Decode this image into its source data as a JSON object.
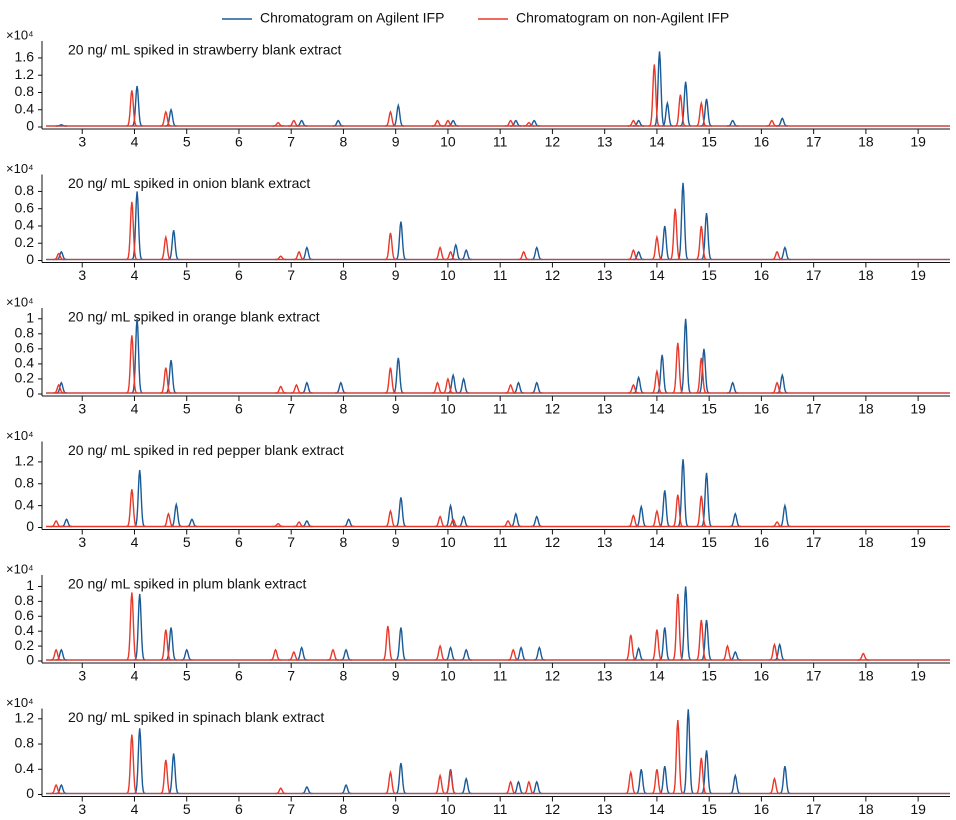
{
  "chart_data": [
    {
      "type": "chromatogram",
      "title": "20 ng/ mL spiked in strawberry blank extract",
      "multiplier": "×10⁴",
      "xlim": [
        2.23,
        19.61
      ],
      "xticks": [
        3,
        4,
        5,
        6,
        7,
        8,
        9,
        10,
        11,
        12,
        13,
        14,
        15,
        16,
        17,
        18,
        19
      ],
      "ylim": [
        0,
        1.9
      ],
      "yticks": [
        0,
        0.4,
        0.8,
        1.2,
        1.6
      ],
      "series": [
        {
          "name": "Chromatogram on Agilent IFP",
          "color": "#1a5a96",
          "x": [
            2.6,
            4.05,
            4.7,
            7.2,
            7.9,
            9.05,
            10.1,
            11.3,
            11.65,
            13.65,
            14.05,
            14.2,
            14.55,
            14.95,
            15.45,
            16.4
          ],
          "values": [
            0.05,
            0.95,
            0.4,
            0.15,
            0.15,
            0.5,
            0.15,
            0.15,
            0.15,
            0.15,
            1.75,
            0.55,
            1.05,
            0.65,
            0.15,
            0.2
          ]
        },
        {
          "name": "Chromatogram on non-Agilent  IFP",
          "color": "#e8382a",
          "x": [
            3.95,
            4.6,
            6.75,
            7.05,
            8.9,
            9.8,
            10.0,
            11.2,
            11.55,
            13.55,
            13.95,
            14.45,
            14.85,
            16.2
          ],
          "values": [
            0.85,
            0.35,
            0.1,
            0.15,
            0.35,
            0.15,
            0.15,
            0.15,
            0.1,
            0.15,
            1.45,
            0.75,
            0.55,
            0.15
          ]
        }
      ]
    },
    {
      "type": "chromatogram",
      "title": "20 ng/ mL spiked in onion blank extract",
      "multiplier": "×10⁴",
      "xlim": [
        2.23,
        19.61
      ],
      "xticks": [
        3,
        4,
        5,
        6,
        7,
        8,
        9,
        10,
        11,
        12,
        13,
        14,
        15,
        16,
        17,
        18,
        19
      ],
      "ylim": [
        0,
        0.95
      ],
      "yticks": [
        0,
        0.2,
        0.4,
        0.6,
        0.8
      ],
      "series": [
        {
          "color": "#1a5a96",
          "x": [
            2.6,
            4.05,
            4.75,
            7.3,
            9.1,
            10.15,
            10.35,
            11.7,
            13.65,
            14.15,
            14.5,
            14.95,
            16.45
          ],
          "values": [
            0.1,
            0.8,
            0.35,
            0.15,
            0.45,
            0.18,
            0.12,
            0.15,
            0.1,
            0.4,
            0.9,
            0.55,
            0.15
          ]
        },
        {
          "color": "#e8382a",
          "x": [
            2.55,
            3.95,
            4.6,
            6.8,
            7.15,
            8.9,
            9.85,
            10.05,
            11.45,
            13.55,
            14.0,
            14.35,
            14.85,
            16.3
          ],
          "values": [
            0.08,
            0.68,
            0.27,
            0.05,
            0.1,
            0.32,
            0.15,
            0.1,
            0.1,
            0.12,
            0.27,
            0.6,
            0.4,
            0.1
          ]
        }
      ]
    },
    {
      "type": "chromatogram",
      "title": "20 ng/ mL spiked in orange blank extract",
      "multiplier": "×10⁴",
      "xlim": [
        2.23,
        19.61
      ],
      "xticks": [
        3,
        4,
        5,
        6,
        7,
        8,
        9,
        10,
        11,
        12,
        13,
        14,
        15,
        16,
        17,
        18,
        19
      ],
      "ylim": [
        0,
        1.09
      ],
      "yticks": [
        0,
        0.2,
        0.4,
        0.6,
        0.8,
        1
      ],
      "series": [
        {
          "color": "#1a5a96",
          "x": [
            2.6,
            4.05,
            4.7,
            7.3,
            7.95,
            9.05,
            10.1,
            10.3,
            11.35,
            11.7,
            13.65,
            14.1,
            14.55,
            14.9,
            15.45,
            16.4
          ],
          "values": [
            0.15,
            1.0,
            0.45,
            0.15,
            0.15,
            0.48,
            0.25,
            0.2,
            0.15,
            0.15,
            0.22,
            0.52,
            1.0,
            0.6,
            0.15,
            0.25
          ]
        },
        {
          "color": "#e8382a",
          "x": [
            2.55,
            3.95,
            4.6,
            6.8,
            7.1,
            8.9,
            9.8,
            10.0,
            11.2,
            13.55,
            14.0,
            14.4,
            14.85,
            16.3
          ],
          "values": [
            0.12,
            0.78,
            0.35,
            0.1,
            0.12,
            0.35,
            0.15,
            0.2,
            0.12,
            0.12,
            0.3,
            0.68,
            0.48,
            0.15
          ]
        }
      ]
    },
    {
      "type": "chromatogram",
      "title": "20 ng/ mL spiked in red pepper blank extract",
      "multiplier": "×10⁴",
      "xlim": [
        2.23,
        19.61
      ],
      "xticks": [
        3,
        4,
        5,
        6,
        7,
        8,
        9,
        10,
        11,
        12,
        13,
        14,
        15,
        16,
        17,
        18,
        19
      ],
      "ylim": [
        0,
        1.5
      ],
      "yticks": [
        0,
        0.4,
        0.8,
        1.2
      ],
      "series": [
        {
          "color": "#1a5a96",
          "x": [
            2.7,
            4.1,
            4.8,
            5.1,
            7.3,
            8.1,
            9.1,
            10.05,
            10.3,
            11.3,
            11.7,
            13.7,
            14.15,
            14.5,
            14.95,
            15.5,
            16.45
          ],
          "values": [
            0.15,
            1.05,
            0.42,
            0.15,
            0.12,
            0.15,
            0.55,
            0.4,
            0.2,
            0.25,
            0.2,
            0.38,
            0.68,
            1.25,
            1.0,
            0.25,
            0.4
          ]
        },
        {
          "color": "#e8382a",
          "x": [
            2.5,
            3.95,
            4.65,
            6.75,
            7.15,
            8.9,
            9.85,
            10.1,
            11.15,
            13.55,
            14.0,
            14.4,
            14.85,
            16.3
          ],
          "values": [
            0.12,
            0.7,
            0.25,
            0.07,
            0.1,
            0.3,
            0.2,
            0.15,
            0.12,
            0.22,
            0.3,
            0.6,
            0.58,
            0.1
          ]
        }
      ]
    },
    {
      "type": "chromatogram",
      "title": "20 ng/ mL spiked in plum blank extract",
      "multiplier": "×10⁴",
      "xlim": [
        2.23,
        19.61
      ],
      "xticks": [
        3,
        4,
        5,
        6,
        7,
        8,
        9,
        10,
        11,
        12,
        13,
        14,
        15,
        16,
        17,
        18,
        19
      ],
      "ylim": [
        0,
        1.1
      ],
      "yticks": [
        0,
        0.2,
        0.4,
        0.6,
        0.8,
        1
      ],
      "series": [
        {
          "color": "#1a5a96",
          "x": [
            2.6,
            4.1,
            4.7,
            5.0,
            7.2,
            8.05,
            9.1,
            10.05,
            10.35,
            11.4,
            11.75,
            13.65,
            14.15,
            14.55,
            14.95,
            15.5,
            16.35
          ],
          "values": [
            0.15,
            0.9,
            0.45,
            0.15,
            0.18,
            0.15,
            0.45,
            0.18,
            0.15,
            0.18,
            0.18,
            0.17,
            0.45,
            1.0,
            0.55,
            0.12,
            0.22
          ]
        },
        {
          "color": "#e8382a",
          "x": [
            2.5,
            3.95,
            4.6,
            6.7,
            7.05,
            7.8,
            8.85,
            9.85,
            11.25,
            13.5,
            14.0,
            14.4,
            14.85,
            15.35,
            16.25,
            17.95
          ],
          "values": [
            0.15,
            0.92,
            0.42,
            0.15,
            0.12,
            0.15,
            0.47,
            0.2,
            0.15,
            0.35,
            0.42,
            0.9,
            0.55,
            0.2,
            0.22,
            0.1
          ]
        }
      ]
    },
    {
      "type": "chromatogram",
      "title": "20 ng/ mL spiked in spinach blank extract",
      "multiplier": "×10⁴",
      "xlim": [
        2.23,
        19.61
      ],
      "xticks": [
        3,
        4,
        5,
        6,
        7,
        8,
        9,
        10,
        11,
        12,
        13,
        14,
        15,
        16,
        17,
        18,
        19
      ],
      "ylim": [
        0,
        1.3
      ],
      "yticks": [
        0,
        0.4,
        0.8,
        1.2
      ],
      "series": [
        {
          "color": "#1a5a96",
          "x": [
            2.6,
            4.1,
            4.75,
            7.3,
            8.05,
            9.1,
            10.05,
            10.35,
            11.35,
            11.7,
            13.7,
            14.15,
            14.6,
            14.95,
            15.5,
            16.45
          ],
          "values": [
            0.15,
            1.05,
            0.65,
            0.12,
            0.15,
            0.5,
            0.4,
            0.25,
            0.2,
            0.2,
            0.4,
            0.45,
            1.35,
            0.7,
            0.3,
            0.45
          ]
        },
        {
          "color": "#e8382a",
          "x": [
            2.5,
            3.95,
            4.6,
            6.8,
            8.9,
            9.85,
            10.05,
            11.2,
            11.55,
            13.5,
            14.0,
            14.4,
            14.85,
            16.25
          ],
          "values": [
            0.15,
            0.95,
            0.55,
            0.1,
            0.35,
            0.3,
            0.35,
            0.2,
            0.2,
            0.35,
            0.4,
            1.18,
            0.58,
            0.25
          ]
        }
      ]
    }
  ]
}
